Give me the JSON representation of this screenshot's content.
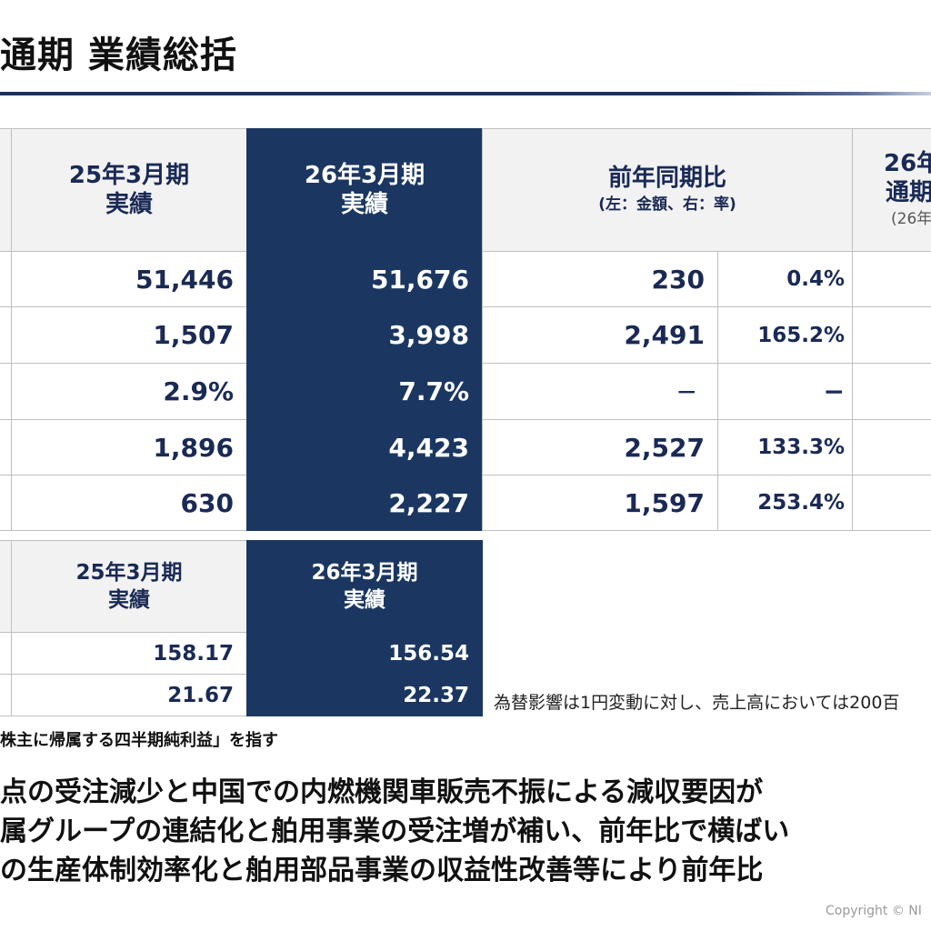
{
  "title": "通期 業績総括",
  "main_table": {
    "headers": {
      "fy25": [
        "25年3月期",
        "実績"
      ],
      "fy26": [
        "26年3月期",
        "実績"
      ],
      "yoy": "前年同期比",
      "yoy_sub": "(左：金額、右：率)",
      "forecast": [
        "26年",
        "通期"
      ],
      "forecast_sub": "(26年"
    },
    "rows": [
      {
        "fy25": "51,446",
        "fy26": "51,676",
        "yoy_amount": "230",
        "yoy_rate": "0.4%"
      },
      {
        "fy25": "1,507",
        "fy26": "3,998",
        "yoy_amount": "2,491",
        "yoy_rate": "165.2%"
      },
      {
        "fy25": "2.9%",
        "fy26": "7.7%",
        "yoy_amount": "−",
        "yoy_rate": "−"
      },
      {
        "fy25": "1,896",
        "fy26": "4,423",
        "yoy_amount": "2,527",
        "yoy_rate": "133.3%"
      },
      {
        "fy25": "630",
        "fy26": "2,227",
        "yoy_amount": "1,597",
        "yoy_rate": "253.4%"
      }
    ]
  },
  "fx_table": {
    "headers": {
      "fy25": [
        "25年3月期",
        "実績"
      ],
      "fy26": [
        "26年3月期",
        "実績"
      ]
    },
    "rows": [
      {
        "fy25": "158.17",
        "fy26": "156.54"
      },
      {
        "fy25": "21.67",
        "fy26": "22.37"
      }
    ]
  },
  "fx_note": "為替影響は1円変動に対し、売上高においては200百",
  "footnote": "株主に帰属する四半期純利益」を指す",
  "bullets": [
    "点の受注減少と中国での内燃機関車販売不振による減収要因が",
    "属グループの連結化と舶用事業の受注増が補い、前年比で横ばい",
    "の生産体制効率化と舶用部品事業の収益性改善等により前年比"
  ],
  "copyright": "Copyright © NI"
}
